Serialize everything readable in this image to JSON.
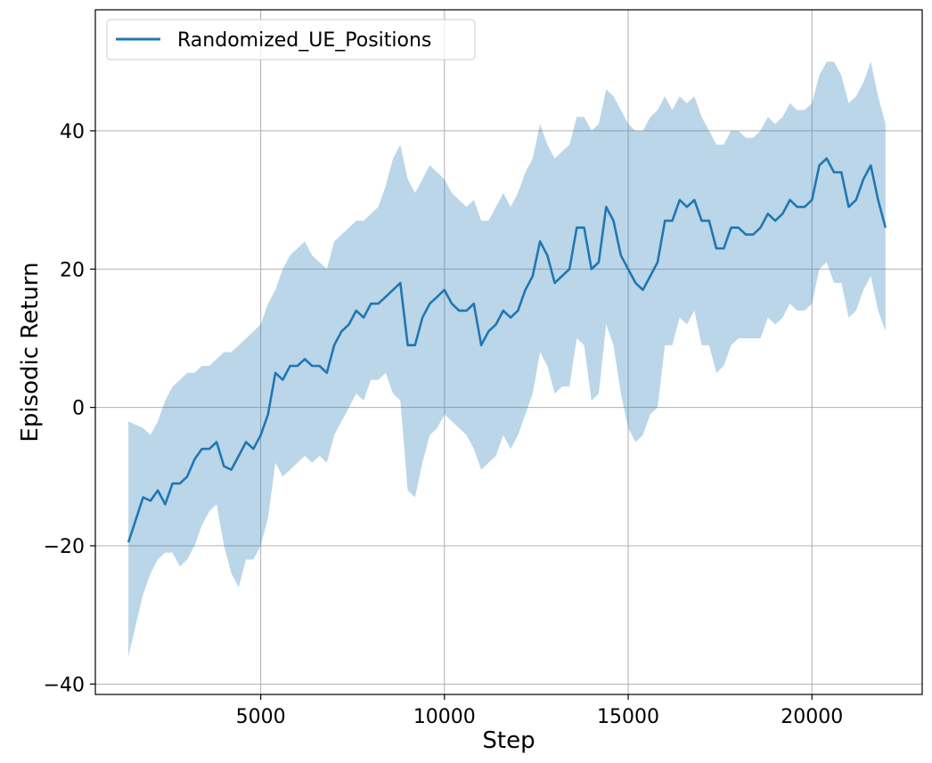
{
  "chart_data": {
    "type": "line",
    "title": "",
    "xlabel": "Step",
    "ylabel": "Episodic Return",
    "xlim": [
      500,
      23000
    ],
    "ylim": [
      -41.5,
      57.5
    ],
    "xticks": [
      5000,
      10000,
      15000,
      20000
    ],
    "xtick_labels": [
      "5000",
      "10000",
      "15000",
      "20000"
    ],
    "yticks": [
      -40,
      -20,
      0,
      20,
      40
    ],
    "ytick_labels": [
      "−40",
      "−20",
      "0",
      "20",
      "40"
    ],
    "grid": true,
    "legend_position": "upper-left",
    "colors": {
      "line": "#1f77b4",
      "band": "#1f77b4"
    },
    "series": [
      {
        "name": "Randomized_UE_Positions",
        "x": [
          1400,
          1800,
          2000,
          2200,
          2400,
          2600,
          2800,
          3000,
          3200,
          3400,
          3600,
          3800,
          4000,
          4200,
          4400,
          4600,
          4800,
          5000,
          5200,
          5400,
          5600,
          5800,
          6000,
          6200,
          6400,
          6600,
          6800,
          7000,
          7200,
          7400,
          7600,
          7800,
          8000,
          8200,
          8400,
          8600,
          8800,
          9000,
          9200,
          9400,
          9600,
          9800,
          10000,
          10200,
          10400,
          10600,
          10800,
          11000,
          11200,
          11400,
          11600,
          11800,
          12000,
          12200,
          12400,
          12600,
          12800,
          13000,
          13200,
          13400,
          13600,
          13800,
          14000,
          14200,
          14400,
          14600,
          14800,
          15000,
          15200,
          15400,
          15600,
          15800,
          16000,
          16200,
          16400,
          16600,
          16800,
          17000,
          17200,
          17400,
          17600,
          17800,
          18000,
          18200,
          18400,
          18600,
          18800,
          19000,
          19200,
          19400,
          19600,
          19800,
          20000,
          20200,
          20400,
          20600,
          20800,
          21000,
          21200,
          21400,
          21600,
          21800,
          22000
        ],
        "y": [
          -19.5,
          -13,
          -13.5,
          -12,
          -14,
          -11,
          -11,
          -10,
          -7.5,
          -6,
          -6,
          -5,
          -8.5,
          -9,
          -7,
          -5,
          -6,
          -4,
          -1,
          5,
          4,
          6,
          6,
          7,
          6,
          6,
          5,
          9,
          11,
          12,
          14,
          13,
          15,
          15,
          16,
          17,
          18,
          9,
          9,
          13,
          15,
          16,
          17,
          15,
          14,
          14,
          15,
          9,
          11,
          12,
          14,
          13,
          14,
          17,
          19,
          24,
          22,
          18,
          19,
          20,
          26,
          26,
          20,
          21,
          29,
          27,
          22,
          20,
          18,
          17,
          19,
          21,
          27,
          27,
          30,
          29,
          30,
          27,
          27,
          23,
          23,
          26,
          26,
          25,
          25,
          26,
          28,
          27,
          28,
          30,
          29,
          29,
          30,
          35,
          36,
          34,
          34,
          29,
          30,
          33,
          35,
          30,
          26
        ],
        "upper": [
          -2,
          -3,
          -4,
          -2,
          1,
          3,
          4,
          5,
          5,
          6,
          6,
          7,
          8,
          8,
          9,
          10,
          11,
          12,
          15,
          17,
          20,
          22,
          23,
          24,
          22,
          21,
          20,
          24,
          25,
          26,
          27,
          27,
          28,
          29,
          32,
          36,
          38,
          33,
          31,
          33,
          35,
          34,
          33,
          31,
          30,
          29,
          30,
          27,
          27,
          29,
          31,
          29,
          31,
          34,
          36,
          41,
          38,
          36,
          37,
          38,
          42,
          42,
          40,
          41,
          46,
          45,
          43,
          41,
          40,
          40,
          42,
          43,
          45,
          43,
          45,
          44,
          45,
          42,
          40,
          38,
          38,
          40,
          40,
          39,
          39,
          40,
          42,
          41,
          42,
          44,
          43,
          43,
          44,
          48,
          50,
          50,
          48,
          44,
          45,
          47,
          50,
          45,
          41
        ],
        "lower": [
          -36,
          -27,
          -24,
          -22,
          -21,
          -21,
          -23,
          -22,
          -20,
          -17,
          -15,
          -14,
          -20,
          -24,
          -26,
          -22,
          -22,
          -20,
          -16,
          -8,
          -10,
          -9,
          -8,
          -7,
          -8,
          -7,
          -8,
          -4,
          -2,
          0,
          2,
          1,
          4,
          4,
          5,
          2,
          1,
          -12,
          -13,
          -8,
          -4,
          -3,
          -1,
          -2,
          -3,
          -4,
          -6,
          -9,
          -8,
          -7,
          -4,
          -6,
          -4,
          -1,
          2,
          8,
          6,
          2,
          3,
          3,
          10,
          9,
          1,
          2,
          12,
          9,
          2,
          -3,
          -5,
          -4,
          -1,
          0,
          9,
          9,
          13,
          12,
          14,
          9,
          9,
          5,
          6,
          9,
          10,
          10,
          10,
          10,
          13,
          12,
          13,
          15,
          14,
          14,
          15,
          20,
          21,
          18,
          18,
          13,
          14,
          17,
          19,
          14,
          11
        ]
      }
    ]
  }
}
